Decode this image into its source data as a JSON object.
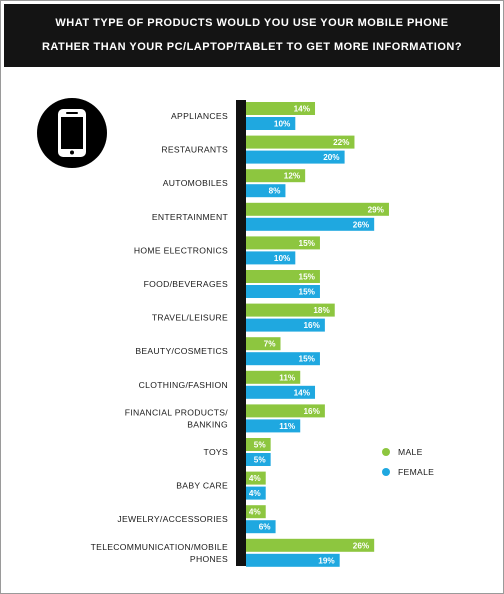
{
  "header": {
    "line1": "WHAT TYPE OF PRODUCTS WOULD YOU USE YOUR MOBILE PHONE",
    "line2": "RATHER THAN YOUR PC/LAPTOP/TABLET TO GET MORE INFORMATION?"
  },
  "icon": "smartphone-icon",
  "colors": {
    "male": "#8dc63f",
    "female": "#1fa8e0",
    "axis": "#111111"
  },
  "chart_data": {
    "type": "bar",
    "orientation": "horizontal",
    "title": "WHAT TYPE OF PRODUCTS WOULD YOU USE YOUR MOBILE PHONE RATHER THAN YOUR PC/LAPTOP/TABLET TO GET MORE INFORMATION?",
    "categories": [
      [
        "APPLIANCES"
      ],
      [
        "RESTAURANTS"
      ],
      [
        "AUTOMOBILES"
      ],
      [
        "ENTERTAINMENT"
      ],
      [
        "HOME ELECTRONICS"
      ],
      [
        "FOOD/BEVERAGES"
      ],
      [
        "TRAVEL/LEISURE"
      ],
      [
        "BEAUTY/COSMETICS"
      ],
      [
        "CLOTHING/FASHION"
      ],
      [
        "FINANCIAL PRODUCTS/",
        "BANKING"
      ],
      [
        "TOYS"
      ],
      [
        "BABY CARE"
      ],
      [
        "JEWELRY/ACCESSORIES"
      ],
      [
        "TELECOMMUNICATION/MOBILE",
        "PHONES"
      ]
    ],
    "series": [
      {
        "name": "MALE",
        "values": [
          14,
          22,
          12,
          29,
          15,
          15,
          18,
          7,
          11,
          16,
          5,
          4,
          4,
          26
        ],
        "labels": [
          "14%",
          "22%",
          "12%",
          "29%",
          "15%",
          "15%",
          "18%",
          "7%",
          "11%",
          "16%",
          "5%",
          "4%",
          "4%",
          "26%"
        ]
      },
      {
        "name": "FEMALE",
        "values": [
          10,
          20,
          8,
          26,
          10,
          15,
          16,
          15,
          14,
          11,
          5,
          4,
          6,
          19
        ],
        "labels": [
          "10%",
          "20%",
          "8%",
          "26%",
          "10%",
          "15%",
          "16%",
          "15%",
          "14%",
          "11%",
          "5%",
          "4%",
          "6%",
          "19%"
        ]
      }
    ],
    "unit": "%",
    "xlim": [
      0,
      29
    ],
    "grid": false,
    "legend": {
      "placement": "right",
      "entries": [
        "MALE",
        "FEMALE"
      ]
    }
  }
}
